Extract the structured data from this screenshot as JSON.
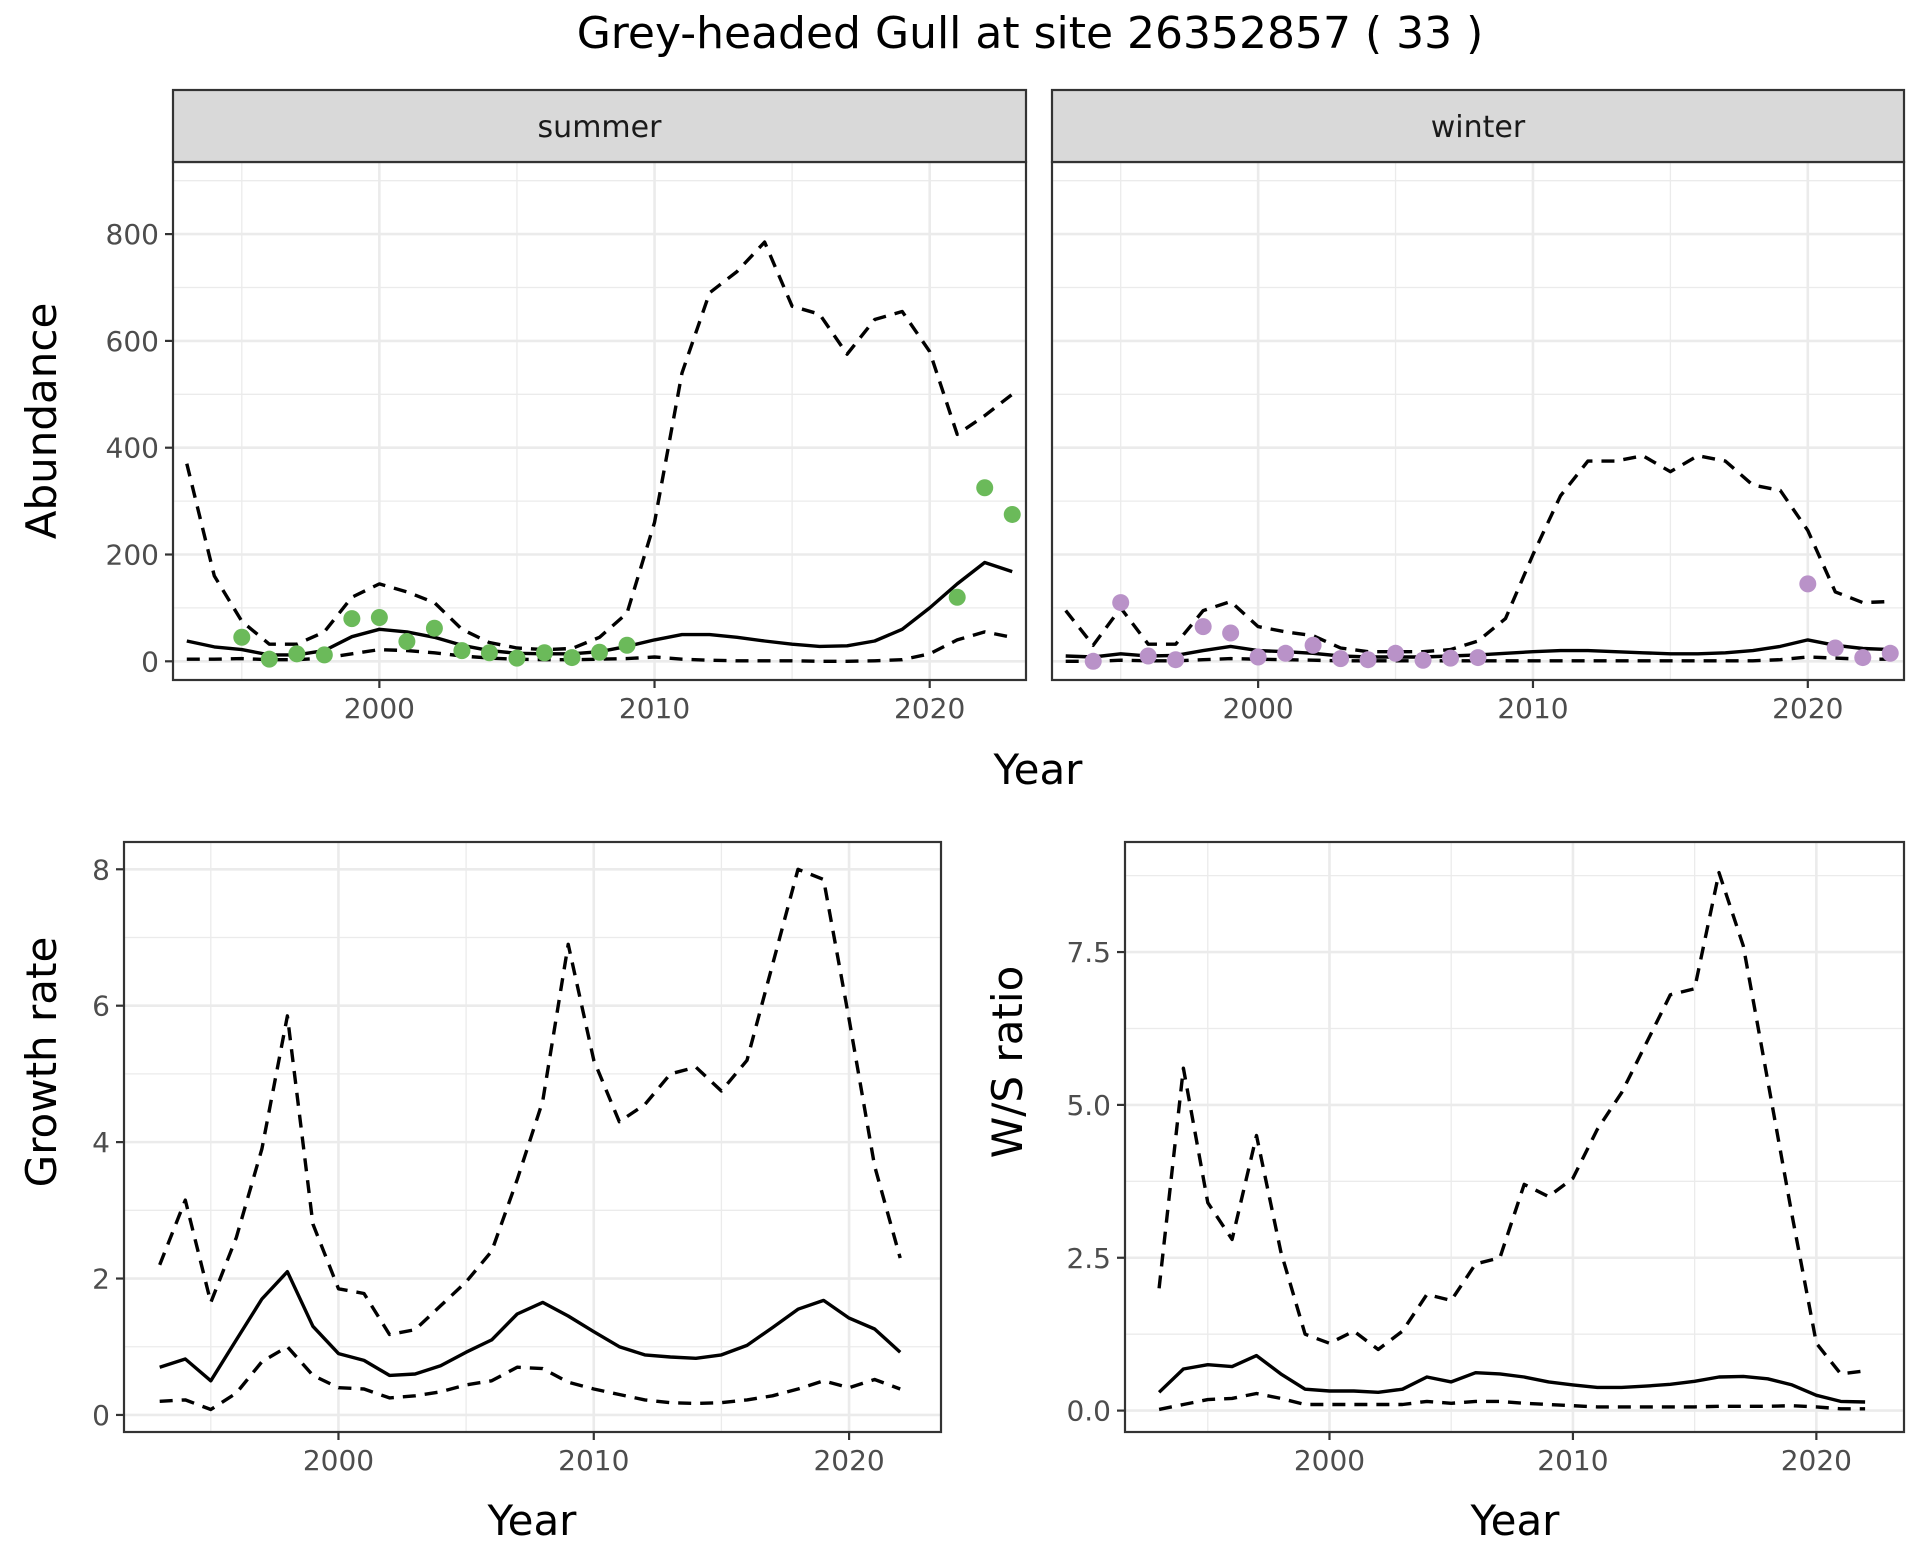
{
  "title": "Grey-headed Gull at site 26352857 ( 33 )",
  "chart_data": [
    {
      "type": "line",
      "facet": "summer",
      "xlabel": "Year",
      "ylabel": "Abundance",
      "xlim": [
        1992.5,
        2023.5
      ],
      "ylim": [
        -35,
        935
      ],
      "xticks": [
        2000,
        2010,
        2020
      ],
      "yticks": [
        0,
        200,
        400,
        600,
        800
      ],
      "point_color": "#6bba5a",
      "x": [
        1993,
        1994,
        1995,
        1996,
        1997,
        1998,
        1999,
        2000,
        2001,
        2002,
        2003,
        2004,
        2005,
        2006,
        2007,
        2008,
        2009,
        2010,
        2011,
        2012,
        2013,
        2014,
        2015,
        2016,
        2017,
        2018,
        2019,
        2020,
        2021,
        2022,
        2023
      ],
      "series": [
        {
          "role": "estimate",
          "style": "solid",
          "values": [
            38,
            27,
            22,
            12,
            12,
            20,
            46,
            60,
            55,
            45,
            30,
            20,
            15,
            14,
            14,
            18,
            28,
            40,
            50,
            50,
            45,
            38,
            32,
            28,
            29,
            38,
            60,
            100,
            145,
            185,
            168
          ]
        },
        {
          "role": "upper",
          "style": "dashed",
          "values": [
            370,
            160,
            75,
            32,
            32,
            55,
            120,
            145,
            130,
            110,
            60,
            35,
            25,
            22,
            24,
            45,
            90,
            260,
            540,
            690,
            730,
            785,
            665,
            650,
            575,
            640,
            655,
            580,
            425,
            460,
            500
          ]
        },
        {
          "role": "lower",
          "style": "dashed",
          "values": [
            4,
            4,
            5,
            3,
            3,
            6,
            14,
            22,
            20,
            16,
            10,
            6,
            4,
            3,
            3,
            4,
            5,
            8,
            4,
            2,
            1,
            1,
            1,
            0,
            0,
            1,
            3,
            14,
            40,
            55,
            45
          ]
        }
      ],
      "points": {
        "x": [
          1995,
          1996,
          1997,
          1998,
          1999,
          2000,
          2001,
          2002,
          2003,
          2004,
          2005,
          2006,
          2007,
          2008,
          2009,
          2021,
          2022,
          2023
        ],
        "y": [
          45,
          4,
          14,
          12,
          80,
          82,
          37,
          62,
          20,
          16,
          6,
          16,
          7,
          17,
          30,
          120,
          325,
          275
        ]
      }
    },
    {
      "type": "line",
      "facet": "winter",
      "xlabel": "Year",
      "ylabel": "Abundance",
      "xlim": [
        1992.5,
        2023.5
      ],
      "ylim": [
        -35,
        935
      ],
      "xticks": [
        2000,
        2010,
        2020
      ],
      "yticks": [
        0,
        200,
        400,
        600,
        800
      ],
      "point_color": "#b992c8",
      "x": [
        1993,
        1994,
        1995,
        1996,
        1997,
        1998,
        1999,
        2000,
        2001,
        2002,
        2003,
        2004,
        2005,
        2006,
        2007,
        2008,
        2009,
        2010,
        2011,
        2012,
        2013,
        2014,
        2015,
        2016,
        2017,
        2018,
        2019,
        2020,
        2021,
        2022,
        2023
      ],
      "series": [
        {
          "role": "estimate",
          "style": "solid",
          "values": [
            10,
            8,
            14,
            10,
            11,
            20,
            28,
            20,
            18,
            15,
            10,
            8,
            8,
            8,
            10,
            12,
            15,
            18,
            20,
            20,
            18,
            16,
            14,
            14,
            16,
            20,
            28,
            40,
            30,
            24,
            22
          ]
        },
        {
          "role": "upper",
          "style": "dashed",
          "values": [
            95,
            30,
            100,
            32,
            32,
            95,
            112,
            65,
            55,
            48,
            25,
            18,
            18,
            18,
            22,
            38,
            80,
            200,
            310,
            375,
            375,
            385,
            355,
            385,
            375,
            330,
            320,
            245,
            130,
            110,
            112
          ]
        },
        {
          "role": "lower",
          "style": "dashed",
          "values": [
            0,
            0,
            2,
            1,
            1,
            3,
            5,
            4,
            3,
            2,
            1,
            1,
            1,
            1,
            1,
            1,
            1,
            1,
            1,
            1,
            1,
            1,
            1,
            1,
            1,
            1,
            3,
            8,
            6,
            4,
            4
          ]
        }
      ],
      "points": {
        "x": [
          1994,
          1995,
          1996,
          1997,
          1998,
          1999,
          2000,
          2001,
          2002,
          2003,
          2004,
          2005,
          2006,
          2007,
          2008,
          2020,
          2021,
          2022,
          2023
        ],
        "y": [
          0,
          110,
          10,
          3,
          65,
          53,
          8,
          15,
          30,
          5,
          3,
          15,
          2,
          6,
          7,
          145,
          25,
          7,
          15
        ]
      }
    },
    {
      "type": "line",
      "xlabel": "Year",
      "ylabel": "Growth rate",
      "xlim": [
        1991.6,
        2023.6
      ],
      "ylim": [
        -0.25,
        8.4
      ],
      "xticks": [
        2000,
        2010,
        2020
      ],
      "yticks": [
        0,
        2,
        4,
        6,
        8
      ],
      "x": [
        1993,
        1994,
        1995,
        1996,
        1997,
        1998,
        1999,
        2000,
        2001,
        2002,
        2003,
        2004,
        2005,
        2006,
        2007,
        2008,
        2009,
        2010,
        2011,
        2012,
        2013,
        2014,
        2015,
        2016,
        2017,
        2018,
        2019,
        2020,
        2021,
        2022
      ],
      "series": [
        {
          "role": "estimate",
          "style": "solid",
          "values": [
            0.7,
            0.82,
            0.5,
            1.1,
            1.7,
            2.1,
            1.3,
            0.9,
            0.8,
            0.58,
            0.6,
            0.72,
            0.92,
            1.1,
            1.48,
            1.65,
            1.45,
            1.22,
            1.0,
            0.88,
            0.85,
            0.83,
            0.88,
            1.02,
            1.28,
            1.55,
            1.68,
            1.42,
            1.26,
            0.92
          ]
        },
        {
          "role": "upper",
          "style": "dashed",
          "values": [
            2.2,
            3.15,
            1.65,
            2.6,
            3.9,
            5.85,
            2.8,
            1.85,
            1.78,
            1.18,
            1.25,
            1.6,
            1.95,
            2.4,
            3.45,
            4.6,
            6.9,
            5.2,
            4.3,
            4.55,
            5.0,
            5.1,
            4.75,
            5.2,
            6.6,
            8.0,
            7.85,
            5.8,
            3.65,
            2.3
          ]
        },
        {
          "role": "lower",
          "style": "dashed",
          "values": [
            0.2,
            0.22,
            0.08,
            0.32,
            0.78,
            1.0,
            0.58,
            0.4,
            0.38,
            0.25,
            0.28,
            0.34,
            0.44,
            0.5,
            0.7,
            0.68,
            0.48,
            0.38,
            0.3,
            0.22,
            0.18,
            0.17,
            0.18,
            0.22,
            0.28,
            0.38,
            0.5,
            0.4,
            0.52,
            0.38
          ]
        }
      ]
    },
    {
      "type": "line",
      "xlabel": "Year",
      "ylabel": "W/S ratio",
      "xlim": [
        1991.6,
        2023.6
      ],
      "ylim": [
        -0.35,
        9.3
      ],
      "xticks": [
        2000,
        2010,
        2020
      ],
      "yticks": [
        0.0,
        2.5,
        5.0,
        7.5
      ],
      "ytick_labels": [
        "0.0",
        "2.5",
        "5.0",
        "7.5"
      ],
      "x": [
        1993,
        1994,
        1995,
        1996,
        1997,
        1998,
        1999,
        2000,
        2001,
        2002,
        2003,
        2004,
        2005,
        2006,
        2007,
        2008,
        2009,
        2010,
        2011,
        2012,
        2013,
        2014,
        2015,
        2016,
        2017,
        2018,
        2019,
        2020,
        2021,
        2022
      ],
      "series": [
        {
          "role": "estimate",
          "style": "solid",
          "values": [
            0.3,
            0.68,
            0.75,
            0.72,
            0.9,
            0.6,
            0.35,
            0.32,
            0.32,
            0.3,
            0.35,
            0.55,
            0.47,
            0.62,
            0.6,
            0.55,
            0.47,
            0.42,
            0.38,
            0.38,
            0.4,
            0.43,
            0.48,
            0.55,
            0.56,
            0.52,
            0.42,
            0.25,
            0.15,
            0.14
          ]
        },
        {
          "role": "upper",
          "style": "dashed",
          "values": [
            2.0,
            5.6,
            3.4,
            2.8,
            4.5,
            2.6,
            1.25,
            1.1,
            1.3,
            1.0,
            1.3,
            1.9,
            1.8,
            2.4,
            2.5,
            3.7,
            3.5,
            3.8,
            4.6,
            5.2,
            6.0,
            6.8,
            6.9,
            8.8,
            7.6,
            5.4,
            3.2,
            1.1,
            0.6,
            0.65
          ]
        },
        {
          "role": "lower",
          "style": "dashed",
          "values": [
            0.02,
            0.1,
            0.18,
            0.2,
            0.28,
            0.2,
            0.1,
            0.1,
            0.1,
            0.1,
            0.1,
            0.15,
            0.12,
            0.15,
            0.15,
            0.12,
            0.1,
            0.08,
            0.06,
            0.06,
            0.06,
            0.06,
            0.06,
            0.07,
            0.07,
            0.07,
            0.08,
            0.06,
            0.03,
            0.03
          ]
        }
      ]
    }
  ]
}
